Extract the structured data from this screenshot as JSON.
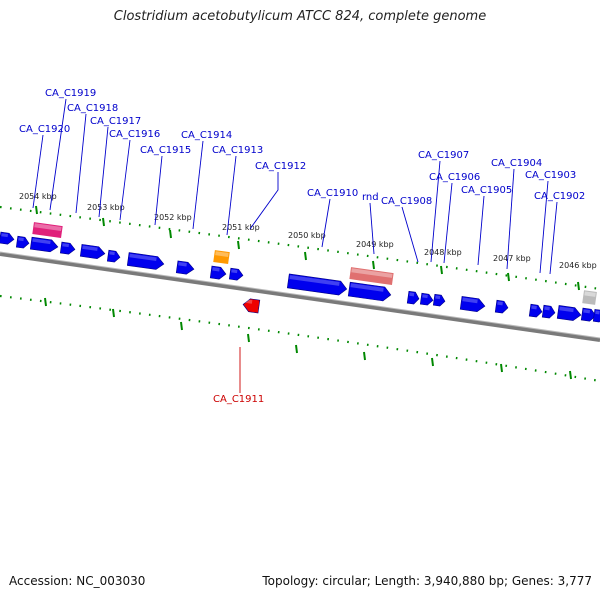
{
  "title": "Clostridium acetobutylicum ATCC 824, complete genome",
  "footer": {
    "accession": "Accession: NC_003030",
    "summary": "Topology: circular; Length: 3,940,880 bp; Genes: 3,777"
  },
  "colors": {
    "forward_gene": "#0000ee",
    "label_text": "#0000cc",
    "highlight_gene": "#ee0000",
    "highlight_label": "#cc0000",
    "tick": "#008800",
    "backbone": "#7a7a7a",
    "pink_feature": "#e0207a",
    "orange_feature": "#ff9900",
    "salmon_feature": "#e07070",
    "gray_feature": "#bbbbbb"
  },
  "scale_labels": [
    "2054 kbp",
    "2053 kbp",
    "2052 kbp",
    "2051 kbp",
    "2050 kbp",
    "2049 kbp",
    "2048 kbp",
    "2047 kbp",
    "2046 kbp"
  ],
  "gene_labels": [
    {
      "text": "CA_C1920",
      "color": "blue"
    },
    {
      "text": "CA_C1919",
      "color": "blue"
    },
    {
      "text": "CA_C1918",
      "color": "blue"
    },
    {
      "text": "CA_C1917",
      "color": "blue"
    },
    {
      "text": "CA_C1916",
      "color": "blue"
    },
    {
      "text": "CA_C1915",
      "color": "blue"
    },
    {
      "text": "CA_C1914",
      "color": "blue"
    },
    {
      "text": "CA_C1913",
      "color": "blue"
    },
    {
      "text": "CA_C1912",
      "color": "blue"
    },
    {
      "text": "CA_C1910",
      "color": "blue"
    },
    {
      "text": "rnd",
      "color": "blue"
    },
    {
      "text": "CA_C1908",
      "color": "blue"
    },
    {
      "text": "CA_C1907",
      "color": "blue"
    },
    {
      "text": "CA_C1906",
      "color": "blue"
    },
    {
      "text": "CA_C1905",
      "color": "blue"
    },
    {
      "text": "CA_C1904",
      "color": "blue"
    },
    {
      "text": "CA_C1903",
      "color": "blue"
    },
    {
      "text": "CA_C1902",
      "color": "blue"
    },
    {
      "text": "CA_C1911",
      "color": "red"
    }
  ]
}
